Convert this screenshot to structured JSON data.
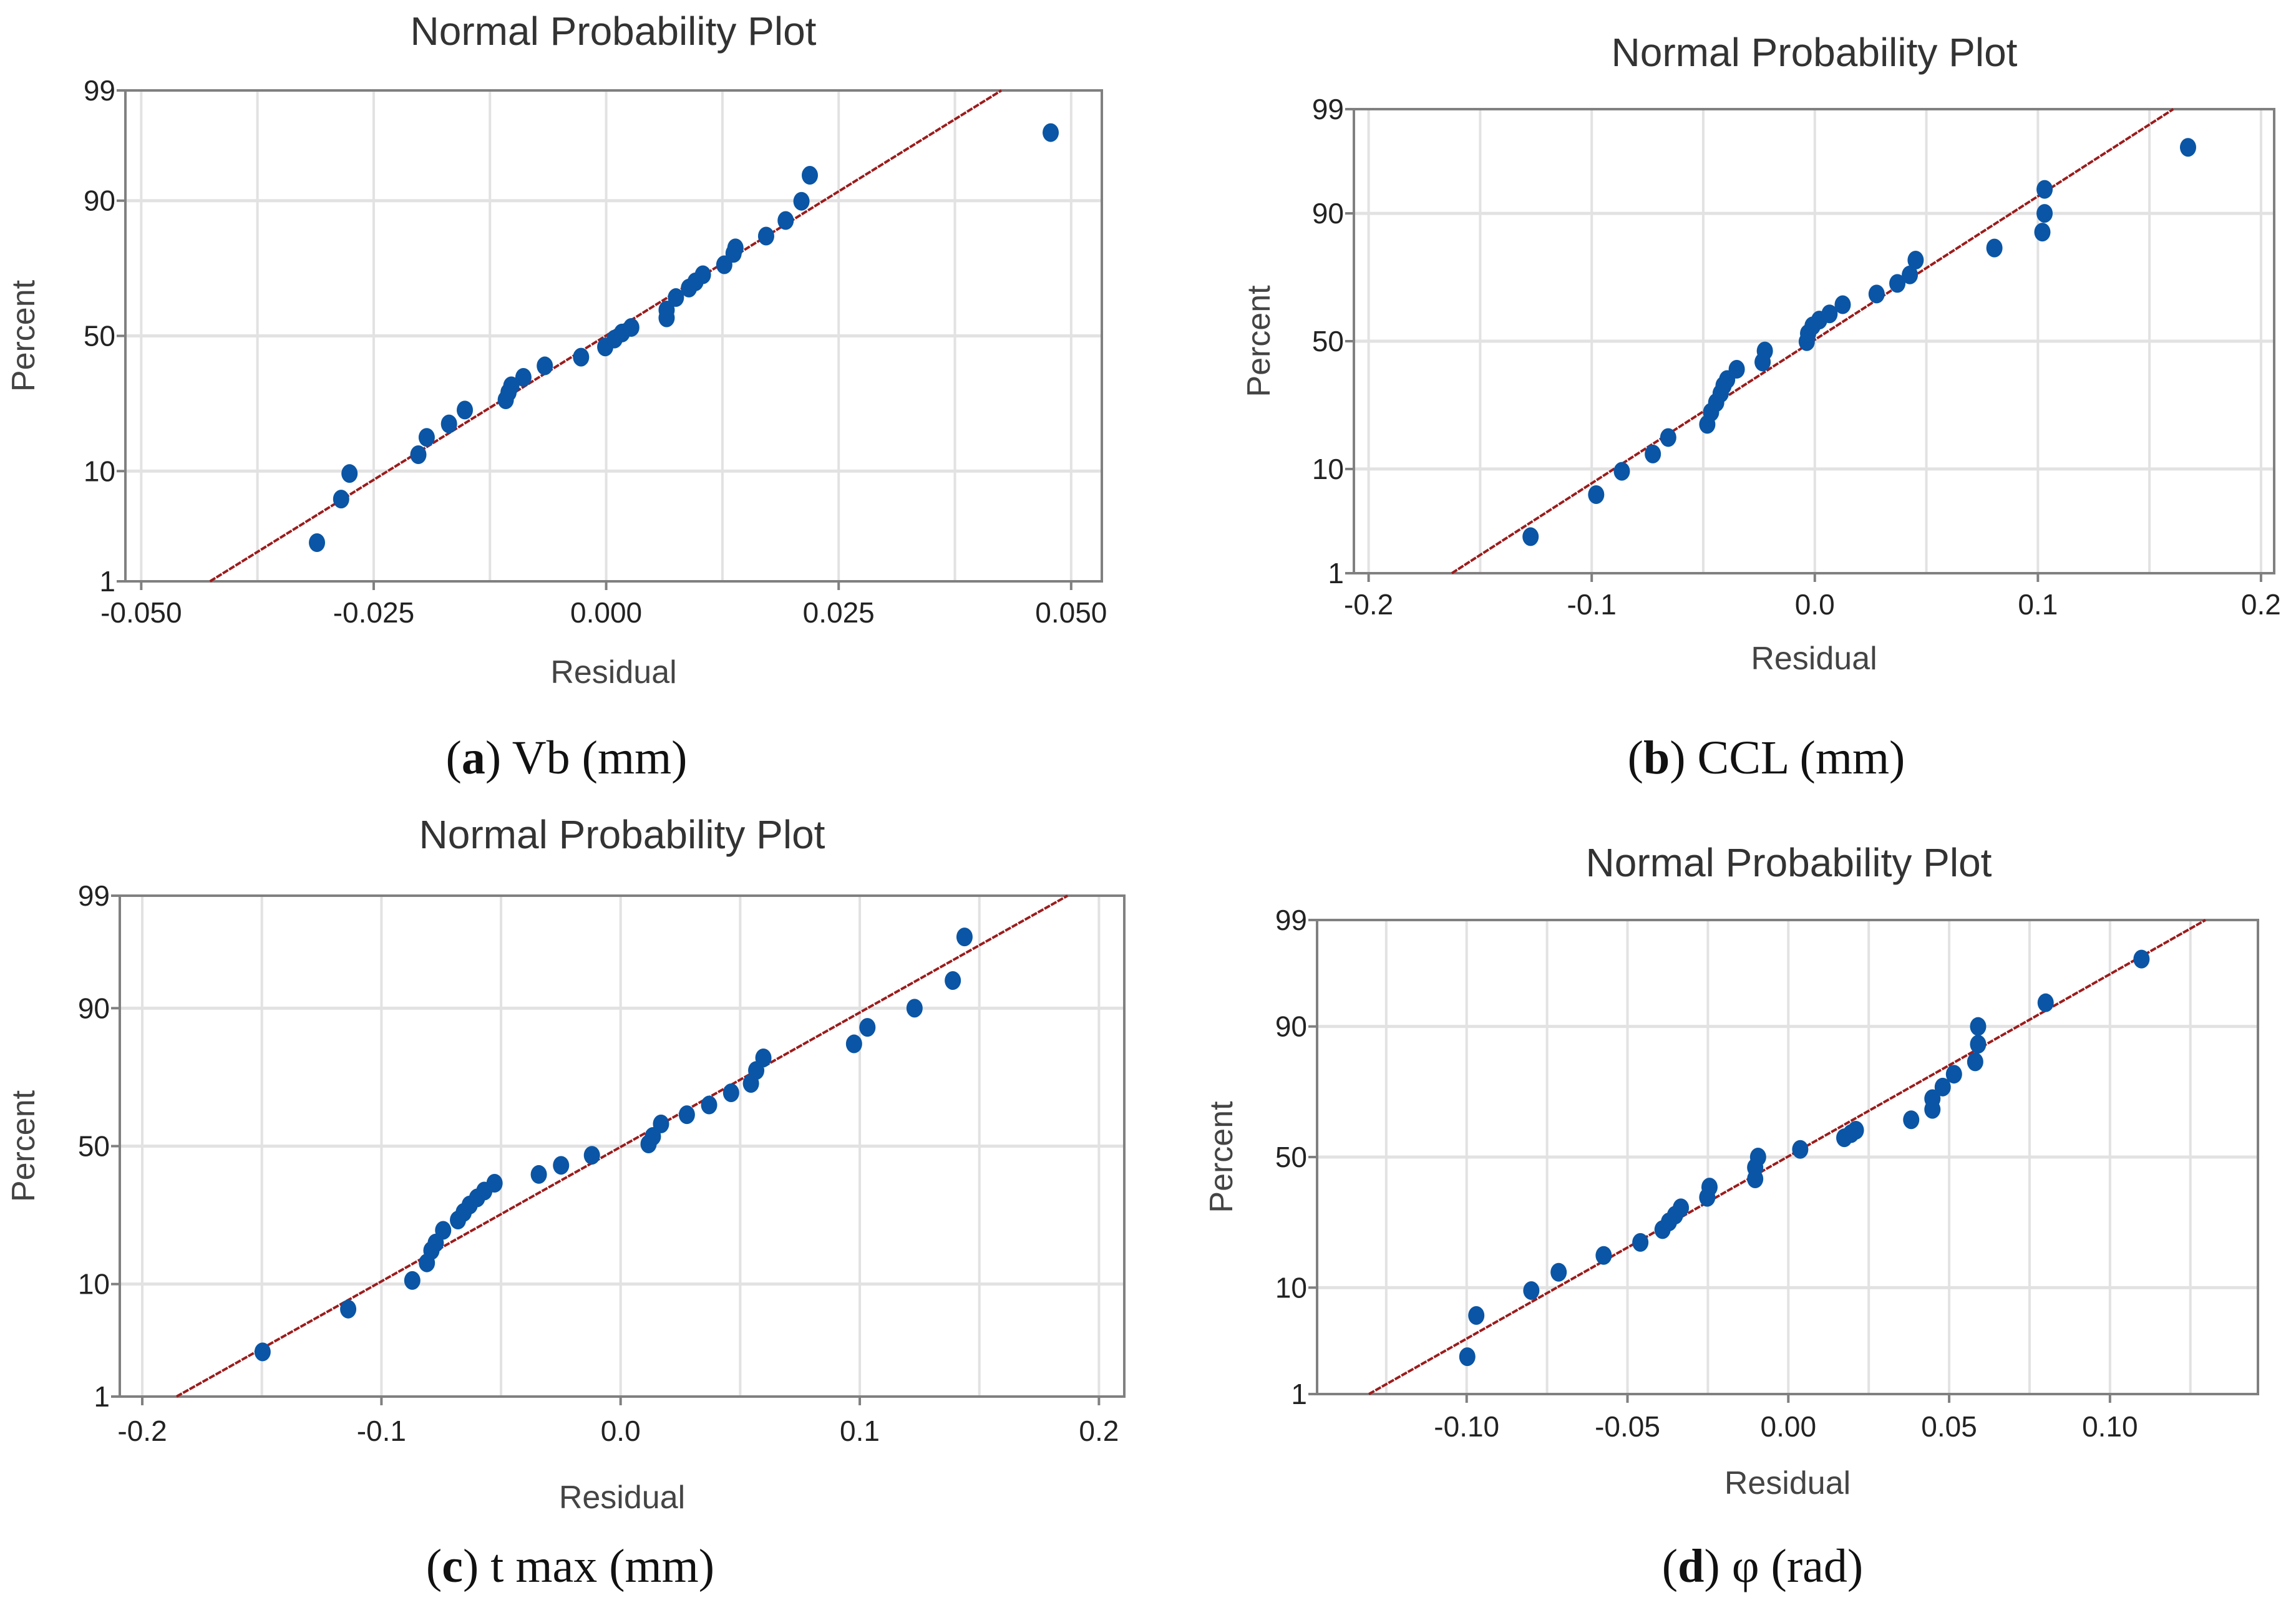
{
  "colors": {
    "point": "#0a55a5",
    "fit_line": "#9b1c1c",
    "grid": "#e2e2e2",
    "frame": "#808080",
    "text": "#333333"
  },
  "chart_data": [
    {
      "type": "scatter",
      "title": "Normal Probability Plot",
      "xlabel": "Residual",
      "ylabel": "Percent",
      "caption": {
        "open": "(",
        "letter": "a",
        "close": ")",
        "label": " Vb (mm)"
      },
      "xlim": [
        -0.0517,
        0.0533
      ],
      "x_ticks": [
        -0.05,
        -0.025,
        0,
        0.025,
        0.05
      ],
      "x_tick_labels": [
        "-0.050",
        "-0.025",
        "0.000",
        "0.025",
        "0.050"
      ],
      "x_grid_step": 0.0125,
      "y_scale": "normal-probability",
      "y_ticks": [
        1,
        10,
        50,
        90,
        99
      ],
      "y_tick_labels": [
        "1",
        "10",
        "50",
        "90",
        "99"
      ],
      "fit_line": {
        "x_at_1": -0.0426,
        "x_at_99": 0.0425
      },
      "points": [
        [
          -0.0311,
          2.5
        ],
        [
          -0.0285,
          6.1
        ],
        [
          -0.0276,
          9.6
        ],
        [
          -0.0202,
          13.0
        ],
        [
          -0.0193,
          16.8
        ],
        [
          -0.0169,
          20.2
        ],
        [
          -0.0152,
          24.1
        ],
        [
          -0.0108,
          27.2
        ],
        [
          -0.0105,
          29.6
        ],
        [
          -0.0102,
          31.8
        ],
        [
          -0.0089,
          34.7
        ],
        [
          -0.0066,
          38.8
        ],
        [
          -0.0027,
          42.0
        ],
        [
          -0.0001,
          45.8
        ],
        [
          0.0009,
          48.8
        ],
        [
          0.0017,
          51.1
        ],
        [
          0.0027,
          53.2
        ],
        [
          0.0065,
          56.8
        ],
        [
          0.0065,
          59.7
        ],
        [
          0.0075,
          64.2
        ],
        [
          0.0089,
          67.5
        ],
        [
          0.0096,
          69.6
        ],
        [
          0.0104,
          71.9
        ],
        [
          0.0127,
          75.0
        ],
        [
          0.0137,
          78.3
        ],
        [
          0.0139,
          79.8
        ],
        [
          0.0172,
          82.8
        ],
        [
          0.0193,
          86.3
        ],
        [
          0.021,
          89.9
        ],
        [
          0.0219,
          93.6
        ],
        [
          0.0478,
          97.3
        ]
      ]
    },
    {
      "type": "scatter",
      "title": "Normal Probability Plot",
      "xlabel": "Residual",
      "ylabel": "Percent",
      "caption": {
        "open": "(",
        "letter": "b",
        "close": ")",
        "label": " CCL (mm)"
      },
      "xlim": [
        -0.2066,
        0.2059
      ],
      "x_ticks": [
        -0.2,
        -0.1,
        0,
        0.1,
        0.2
      ],
      "x_tick_labels": [
        "-0.2",
        "-0.1",
        "0.0",
        "0.1",
        "0.2"
      ],
      "x_grid_step": 0.05,
      "y_scale": "normal-probability",
      "y_ticks": [
        1,
        10,
        50,
        90,
        99
      ],
      "y_tick_labels": [
        "1",
        "10",
        "50",
        "90",
        "99"
      ],
      "fit_line": {
        "x_at_1": -0.1627,
        "x_at_99": 0.1607
      },
      "points": [
        [
          -0.1274,
          2.5
        ],
        [
          -0.098,
          6.2
        ],
        [
          -0.0865,
          9.6
        ],
        [
          -0.0726,
          12.9
        ],
        [
          -0.0657,
          16.7
        ],
        [
          -0.0482,
          20.2
        ],
        [
          -0.0465,
          23.8
        ],
        [
          -0.0442,
          26.9
        ],
        [
          -0.0422,
          30.0
        ],
        [
          -0.0409,
          32.8
        ],
        [
          -0.0393,
          35.0
        ],
        [
          -0.035,
          38.9
        ],
        [
          -0.0234,
          41.7
        ],
        [
          -0.0224,
          46.1
        ],
        [
          -0.0036,
          49.8
        ],
        [
          -0.003,
          53.1
        ],
        [
          -0.001,
          56.1
        ],
        [
          0.002,
          58.4
        ],
        [
          0.0066,
          60.8
        ],
        [
          0.0125,
          64.3
        ],
        [
          0.0277,
          68.2
        ],
        [
          0.037,
          71.9
        ],
        [
          0.0426,
          74.7
        ],
        [
          0.0452,
          79.2
        ],
        [
          0.0805,
          82.5
        ],
        [
          0.102,
          86.3
        ],
        [
          0.103,
          90.0
        ],
        [
          0.103,
          93.6
        ],
        [
          0.1673,
          97.4
        ]
      ]
    },
    {
      "type": "scatter",
      "title": "Normal Probability Plot",
      "xlabel": "Residual",
      "ylabel": "Percent",
      "caption": {
        "open": "(",
        "letter": "c",
        "close": ")",
        "label": " t max (mm)"
      },
      "xlim": [
        -0.2094,
        0.2106
      ],
      "x_ticks": [
        -0.2,
        -0.1,
        0,
        0.1,
        0.2
      ],
      "x_tick_labels": [
        "-0.2",
        "-0.1",
        "0.0",
        "0.1",
        "0.2"
      ],
      "x_grid_step": 0.05,
      "y_scale": "normal-probability",
      "y_ticks": [
        1,
        10,
        50,
        90,
        99
      ],
      "y_tick_labels": [
        "1",
        "10",
        "50",
        "90",
        "99"
      ],
      "fit_line": {
        "x_at_1": -0.1857,
        "x_at_99": 0.1869
      },
      "points": [
        [
          -0.1497,
          2.8
        ],
        [
          -0.1139,
          6.5
        ],
        [
          -0.0871,
          10.6
        ],
        [
          -0.081,
          13.9
        ],
        [
          -0.0791,
          16.6
        ],
        [
          -0.0773,
          18.4
        ],
        [
          -0.0742,
          21.7
        ],
        [
          -0.068,
          24.6
        ],
        [
          -0.0656,
          26.9
        ],
        [
          -0.0631,
          29.2
        ],
        [
          -0.06,
          31.5
        ],
        [
          -0.057,
          33.8
        ],
        [
          -0.0527,
          36.5
        ],
        [
          -0.0342,
          39.6
        ],
        [
          -0.0249,
          42.9
        ],
        [
          -0.012,
          46.6
        ],
        [
          0.0117,
          50.8
        ],
        [
          0.0135,
          53.6
        ],
        [
          0.0169,
          58.2
        ],
        [
          0.0277,
          61.5
        ],
        [
          0.037,
          64.9
        ],
        [
          0.0462,
          69.0
        ],
        [
          0.0545,
          72.0
        ],
        [
          0.0567,
          75.9
        ],
        [
          0.0597,
          79.4
        ],
        [
          0.0976,
          82.9
        ],
        [
          0.1032,
          86.5
        ],
        [
          0.1229,
          90.0
        ],
        [
          0.1389,
          93.8
        ],
        [
          0.1438,
          97.4
        ]
      ]
    },
    {
      "type": "scatter",
      "title": "Normal Probability Plot",
      "xlabel": "Residual",
      "ylabel": "Percent",
      "caption": {
        "open": "(",
        "letter": "d",
        "close": ")",
        "label": " φ (rad)"
      },
      "xlim": [
        -0.1465,
        0.146
      ],
      "x_ticks": [
        -0.1,
        -0.05,
        0,
        0.05,
        0.1
      ],
      "x_tick_labels": [
        "-0.10",
        "-0.05",
        "0.00",
        "0.05",
        "0.10"
      ],
      "x_grid_step": 0.025,
      "y_scale": "normal-probability",
      "y_ticks": [
        1,
        10,
        50,
        90,
        99
      ],
      "y_tick_labels": [
        "1",
        "10",
        "50",
        "90",
        "99"
      ],
      "fit_line": {
        "x_at_1": -0.1304,
        "x_at_99": 0.1297
      },
      "points": [
        [
          -0.0998,
          2.5
        ],
        [
          -0.097,
          6.0
        ],
        [
          -0.0799,
          9.5
        ],
        [
          -0.0714,
          12.9
        ],
        [
          -0.0574,
          16.7
        ],
        [
          -0.046,
          20.1
        ],
        [
          -0.0391,
          23.8
        ],
        [
          -0.0371,
          26.2
        ],
        [
          -0.0352,
          28.4
        ],
        [
          -0.0334,
          30.9
        ],
        [
          -0.0252,
          34.6
        ],
        [
          -0.0245,
          38.4
        ],
        [
          -0.0103,
          41.5
        ],
        [
          -0.0103,
          45.9
        ],
        [
          -0.0094,
          50.0
        ],
        [
          0.0037,
          53.0
        ],
        [
          0.0174,
          57.5
        ],
        [
          0.0195,
          59.1
        ],
        [
          0.021,
          60.4
        ],
        [
          0.0382,
          64.3
        ],
        [
          0.0448,
          68.0
        ],
        [
          0.0448,
          71.7
        ],
        [
          0.048,
          75.4
        ],
        [
          0.0515,
          79.2
        ],
        [
          0.0581,
          82.5
        ],
        [
          0.059,
          86.6
        ],
        [
          0.059,
          90.0
        ],
        [
          0.08,
          93.5
        ],
        [
          0.1098,
          97.4
        ]
      ]
    }
  ]
}
